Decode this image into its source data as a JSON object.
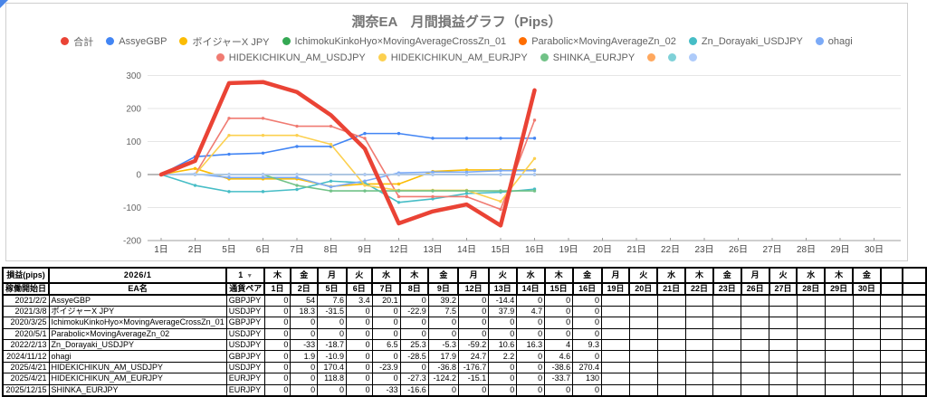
{
  "chart": {
    "title": "潤奈EA　月間損益グラフ（Pips）",
    "legend_rows": [
      [
        {
          "label": "合計",
          "color": "#ea4335"
        },
        {
          "label": "AssyeGBP",
          "color": "#4285f4"
        },
        {
          "label": "ボイジャーX JPY",
          "color": "#fbbc04"
        },
        {
          "label": "IchimokuKinkoHyo×MovingAverageCrossZn_01",
          "color": "#34a853"
        },
        {
          "label": "Parabolic×MovingAverageZn_02",
          "color": "#ff6d01"
        },
        {
          "label": "Zn_Dorayaki_USDJPY",
          "color": "#46bdc6"
        },
        {
          "label": "ohagi",
          "color": "#7baaf7"
        }
      ],
      [
        {
          "label": "HIDEKICHIKUN_AM_USDJPY",
          "color": "#f07b72"
        },
        {
          "label": "HIDEKICHIKUN_AM_EURJPY",
          "color": "#fcd04f"
        },
        {
          "label": "SHINKA_EURJPY",
          "color": "#71c287"
        },
        {
          "label": "",
          "color": "#ffa85e"
        },
        {
          "label": "",
          "color": "#7fd1d8"
        },
        {
          "label": "",
          "color": "#aecbfa"
        }
      ]
    ]
  },
  "chart_data": {
    "type": "line",
    "x": [
      "1日",
      "2日",
      "5日",
      "6日",
      "7日",
      "8日",
      "9日",
      "12日",
      "13日",
      "14日",
      "15日",
      "16日",
      "19日",
      "20日",
      "21日",
      "22日",
      "23日",
      "26日",
      "27日",
      "28日",
      "29日",
      "30日"
    ],
    "ylim": [
      -200,
      300
    ],
    "yticks": [
      300,
      200,
      100,
      0,
      -100,
      -200
    ],
    "grid": true,
    "legend_position": "top",
    "series": [
      {
        "name": "合計",
        "color": "#ea4335",
        "emphasis": true,
        "values": [
          0,
          41.2,
          276.9,
          280.3,
          250.0,
          180.0,
          78.3,
          -148.0,
          -111.7,
          -90.7,
          -154.4,
          255.3
        ]
      },
      {
        "name": "AssyeGBP",
        "color": "#4285f4",
        "values": [
          0,
          54,
          61.6,
          65,
          85.1,
          85.1,
          124.3,
          124.3,
          109.9,
          109.9,
          109.9,
          109.9
        ]
      },
      {
        "name": "ボイジャーX JPY",
        "color": "#fbbc04",
        "values": [
          0,
          18.3,
          -13.2,
          -13.2,
          -13.2,
          -36.1,
          -28.6,
          -28.6,
          9.3,
          14,
          14,
          14
        ]
      },
      {
        "name": "IchimokuKinkoHyo×MovingAverageCrossZn_01",
        "color": "#34a853",
        "values": [
          0,
          0,
          0,
          0,
          0,
          0,
          0,
          0,
          0,
          0,
          0,
          0
        ]
      },
      {
        "name": "Parabolic×MovingAverageZn_02",
        "color": "#ff6d01",
        "values": [
          0,
          0,
          0,
          0,
          0,
          0,
          0,
          0,
          0,
          0,
          0,
          0
        ]
      },
      {
        "name": "Zn_Dorayaki_USDJPY",
        "color": "#46bdc6",
        "values": [
          0,
          -33,
          -51.7,
          -51.7,
          -45.2,
          -19.9,
          -25.2,
          -84.4,
          -73.8,
          -57.5,
          -53.5,
          -44.2
        ]
      },
      {
        "name": "ohagi",
        "color": "#7baaf7",
        "values": [
          0,
          1.9,
          -9,
          -9,
          -9,
          -37.5,
          -19.6,
          5.1,
          7.3,
          7.3,
          11.9,
          11.9
        ]
      },
      {
        "name": "HIDEKICHIKUN_AM_USDJPY",
        "color": "#f07b72",
        "values": [
          0,
          0,
          170.4,
          170.4,
          146.5,
          146.5,
          109.7,
          -67,
          -67,
          -67,
          -105.6,
          164.8
        ]
      },
      {
        "name": "HIDEKICHIKUN_AM_EURJPY",
        "color": "#fcd04f",
        "values": [
          0,
          0,
          118.8,
          118.8,
          118.8,
          91.5,
          -32.7,
          -47.8,
          -47.8,
          -47.8,
          -81.5,
          48.5
        ]
      },
      {
        "name": "SHINKA_EURJPY",
        "color": "#71c287",
        "values": [
          0,
          0,
          0,
          0,
          -33,
          -49.6,
          -49.6,
          -49.6,
          -49.6,
          -49.6,
          -49.6,
          -49.6
        ]
      },
      {
        "name": "",
        "color": "#ffa85e",
        "values": [
          0,
          0,
          0,
          0,
          0,
          0,
          0,
          0,
          0,
          0,
          0,
          0
        ]
      },
      {
        "name": "",
        "color": "#7fd1d8",
        "values": [
          0,
          0,
          0,
          0,
          0,
          0,
          0,
          0,
          0,
          0,
          0,
          0
        ]
      },
      {
        "name": "",
        "color": "#aecbfa",
        "values": [
          0,
          0,
          0,
          0,
          0,
          0,
          0,
          0,
          0,
          0,
          0,
          0
        ]
      }
    ]
  },
  "table": {
    "corner_label": "損益(pips)",
    "month": "2026/1",
    "month_selector": "1",
    "selector_arrow": "▼",
    "sub_headers": {
      "start_date": "稼働開始日",
      "ea_name": "EA名",
      "pair": "通貨ペア"
    },
    "weekdays": [
      "木",
      "金",
      "月",
      "火",
      "水",
      "木",
      "金",
      "月",
      "火",
      "水",
      "木",
      "金",
      "月",
      "火",
      "水",
      "木",
      "金",
      "月",
      "火",
      "水",
      "木",
      "金"
    ],
    "days": [
      "1日",
      "2日",
      "5日",
      "6日",
      "7日",
      "8日",
      "9日",
      "12日",
      "13日",
      "14日",
      "15日",
      "16日",
      "19日",
      "20日",
      "21日",
      "22日",
      "23日",
      "26日",
      "27日",
      "28日",
      "29日",
      "30日"
    ],
    "extra_empty_columns": 2,
    "rows": [
      {
        "start_date": "2021/2/2",
        "name": "AssyeGBP",
        "pair": "GBPJPY",
        "values": [
          "0",
          "54",
          "7.6",
          "3.4",
          "20.1",
          "0",
          "39.2",
          "0",
          "-14.4",
          "0",
          "0",
          "0"
        ]
      },
      {
        "start_date": "2021/3/8",
        "name": "ボイジャーX JPY",
        "pair": "USDJPY",
        "values": [
          "0",
          "18.3",
          "-31.5",
          "0",
          "0",
          "-22.9",
          "7.5",
          "0",
          "37.9",
          "4.7",
          "0",
          "0"
        ]
      },
      {
        "start_date": "2020/3/25",
        "name": "IchimokuKinkoHyo×MovingAverageCrossZn_01",
        "pair": "GBPJPY",
        "values": [
          "0",
          "0",
          "0",
          "0",
          "0",
          "0",
          "0",
          "0",
          "0",
          "0",
          "0",
          "0"
        ]
      },
      {
        "start_date": "2020/5/1",
        "name": "Parabolic×MovingAverageZn_02",
        "pair": "USDJPY",
        "values": [
          "0",
          "0",
          "0",
          "0",
          "0",
          "0",
          "0",
          "0",
          "0",
          "0",
          "0",
          "0"
        ]
      },
      {
        "start_date": "2022/2/13",
        "name": "Zn_Dorayaki_USDJPY",
        "pair": "USDJPY",
        "values": [
          "0",
          "-33",
          "-18.7",
          "0",
          "6.5",
          "25.3",
          "-5.3",
          "-59.2",
          "10.6",
          "16.3",
          "4",
          "9.3"
        ]
      },
      {
        "start_date": "2024/11/12",
        "name": "ohagi",
        "pair": "GBPJPY",
        "values": [
          "0",
          "1.9",
          "-10.9",
          "0",
          "0",
          "-28.5",
          "17.9",
          "24.7",
          "2.2",
          "0",
          "4.6",
          "0"
        ]
      },
      {
        "start_date": "2025/4/21",
        "name": "HIDEKICHIKUN_AM_USDJPY",
        "pair": "USDJPY",
        "values": [
          "0",
          "0",
          "170.4",
          "0",
          "-23.9",
          "0",
          "-36.8",
          "-176.7",
          "0",
          "0",
          "-38.6",
          "270.4"
        ]
      },
      {
        "start_date": "2025/4/21",
        "name": "HIDEKICHIKUN_AM_EURJPY",
        "pair": "EURJPY",
        "values": [
          "0",
          "0",
          "118.8",
          "0",
          "0",
          "-27.3",
          "-124.2",
          "-15.1",
          "0",
          "0",
          "-33.7",
          "130"
        ]
      },
      {
        "start_date": "2025/12/15",
        "name": "SHINKA_EURJPY",
        "pair": "EURJPY",
        "values": [
          "0",
          "0",
          "0",
          "0",
          "-33",
          "-16.6",
          "0",
          "0",
          "0",
          "0",
          "0",
          "0"
        ]
      }
    ]
  }
}
